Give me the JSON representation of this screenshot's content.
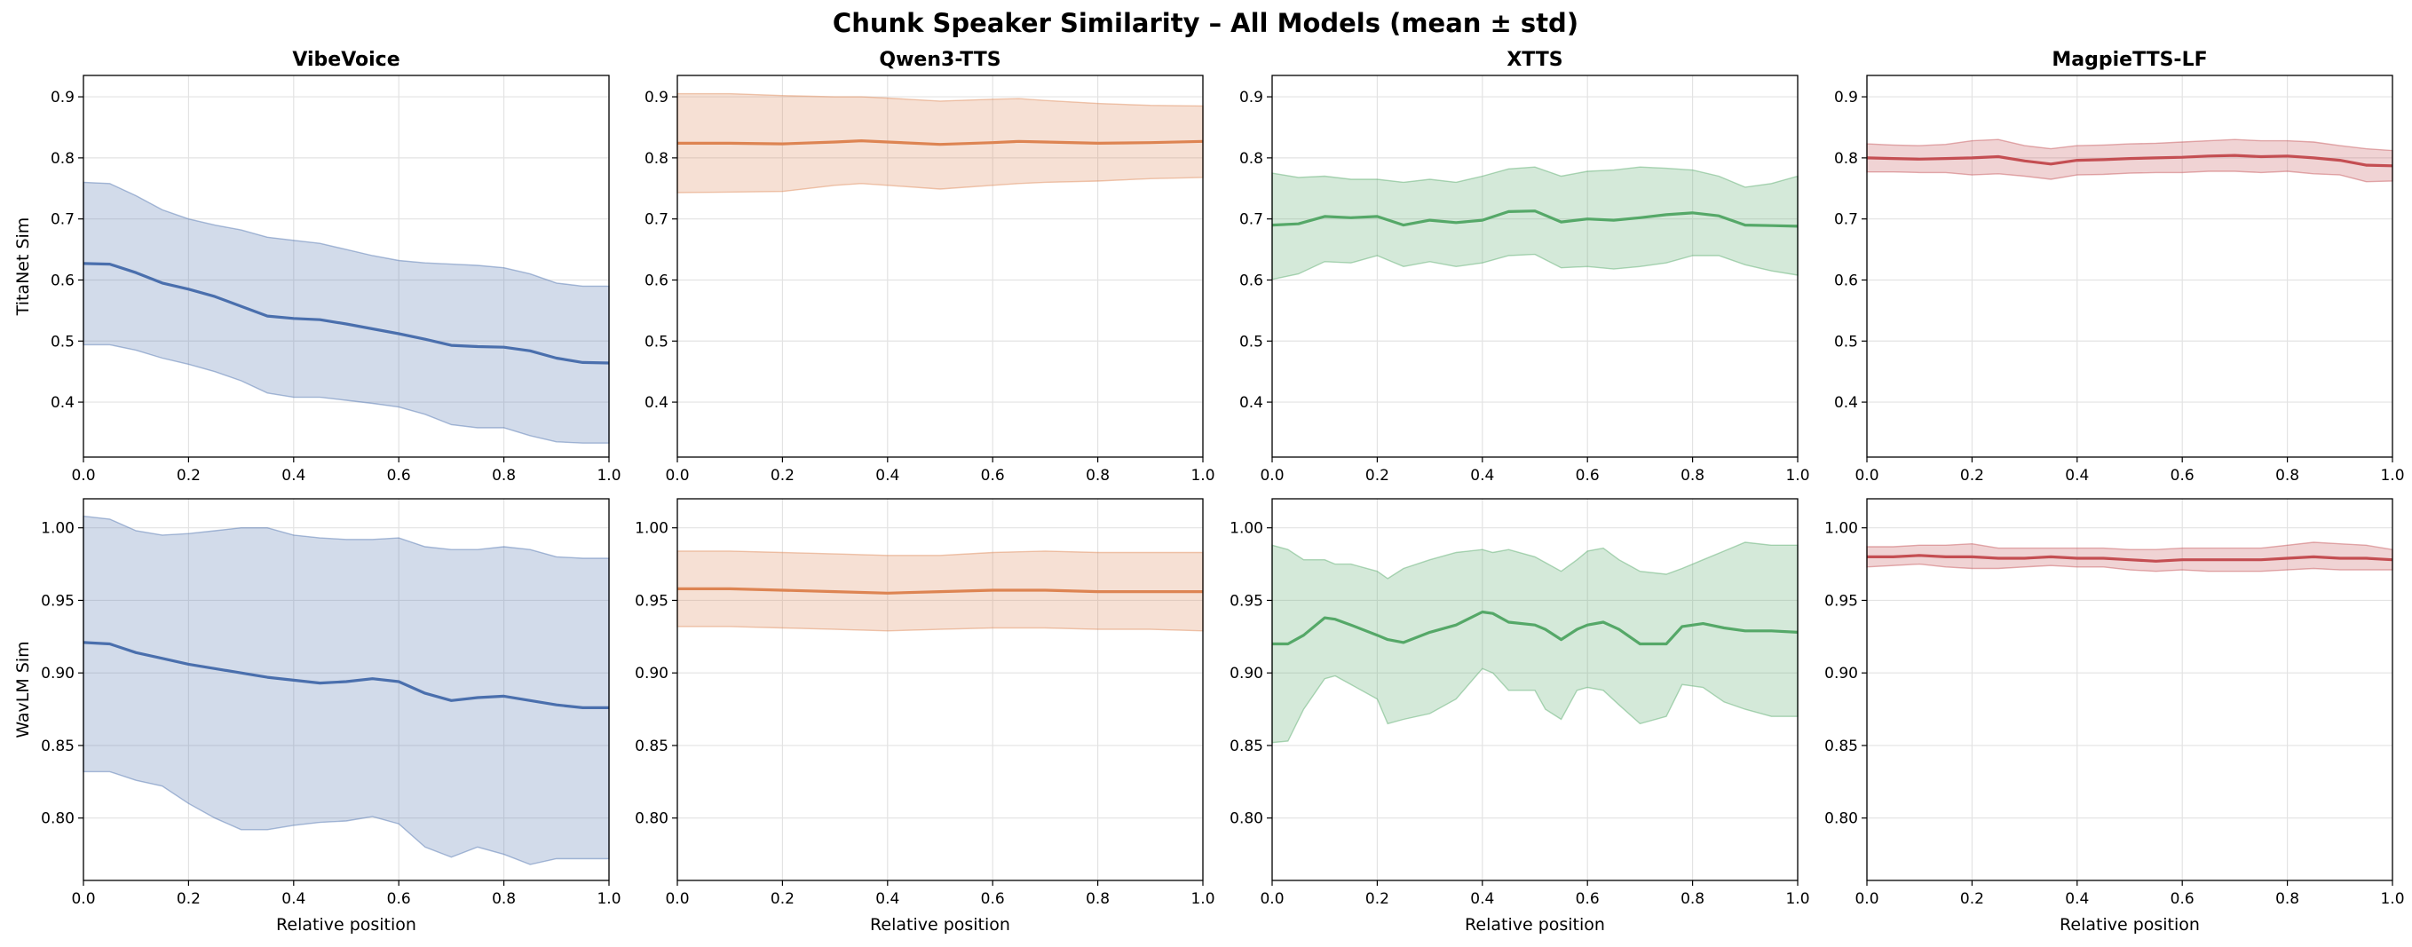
{
  "title": "Chunk Speaker Similarity – All Models (mean ± std)",
  "colors": {
    "VibeVoice": "#4a6fad",
    "Qwen3-TTS": "#dd8452",
    "XTTS": "#55a868",
    "MagpieTTS-LF": "#c44e52"
  },
  "chart_data": [
    {
      "type": "area",
      "model": "VibeVoice",
      "title": "VibeVoice",
      "row": 0,
      "col": 0,
      "xlabel": "",
      "ylabel": "TitaNet Sim",
      "xlim": [
        0,
        1
      ],
      "ylim": [
        0.31,
        0.935
      ],
      "xticks": [
        "0.0",
        "0.2",
        "0.4",
        "0.6",
        "0.8",
        "1.0"
      ],
      "yticks": [
        "0.4",
        "0.5",
        "0.6",
        "0.7",
        "0.8",
        "0.9"
      ],
      "x": [
        0.0,
        0.05,
        0.1,
        0.15,
        0.2,
        0.25,
        0.3,
        0.35,
        0.4,
        0.45,
        0.5,
        0.55,
        0.6,
        0.65,
        0.7,
        0.75,
        0.8,
        0.85,
        0.9,
        0.95,
        1.0
      ],
      "mean": [
        0.627,
        0.626,
        0.612,
        0.595,
        0.585,
        0.573,
        0.557,
        0.541,
        0.537,
        0.535,
        0.528,
        0.52,
        0.512,
        0.503,
        0.493,
        0.491,
        0.49,
        0.484,
        0.472,
        0.465,
        0.464
      ],
      "upper": [
        0.76,
        0.758,
        0.738,
        0.715,
        0.7,
        0.69,
        0.682,
        0.67,
        0.665,
        0.66,
        0.65,
        0.64,
        0.632,
        0.628,
        0.626,
        0.624,
        0.62,
        0.61,
        0.595,
        0.59,
        0.59
      ],
      "lower": [
        0.494,
        0.494,
        0.485,
        0.472,
        0.462,
        0.45,
        0.435,
        0.415,
        0.408,
        0.408,
        0.403,
        0.398,
        0.392,
        0.38,
        0.363,
        0.358,
        0.358,
        0.345,
        0.335,
        0.333,
        0.333
      ]
    },
    {
      "type": "area",
      "model": "Qwen3-TTS",
      "title": "Qwen3-TTS",
      "row": 0,
      "col": 1,
      "xlabel": "",
      "ylabel": "",
      "xlim": [
        0,
        1
      ],
      "ylim": [
        0.31,
        0.935
      ],
      "xticks": [
        "0.0",
        "0.2",
        "0.4",
        "0.6",
        "0.8",
        "1.0"
      ],
      "yticks": [
        "0.4",
        "0.5",
        "0.6",
        "0.7",
        "0.8",
        "0.9"
      ],
      "x": [
        0.0,
        0.1,
        0.2,
        0.3,
        0.35,
        0.4,
        0.5,
        0.6,
        0.65,
        0.7,
        0.8,
        0.9,
        1.0
      ],
      "mean": [
        0.824,
        0.824,
        0.823,
        0.826,
        0.828,
        0.826,
        0.822,
        0.825,
        0.827,
        0.826,
        0.824,
        0.825,
        0.827
      ],
      "upper": [
        0.905,
        0.905,
        0.902,
        0.9,
        0.9,
        0.898,
        0.893,
        0.896,
        0.897,
        0.894,
        0.889,
        0.886,
        0.885
      ],
      "lower": [
        0.743,
        0.744,
        0.745,
        0.755,
        0.758,
        0.755,
        0.749,
        0.755,
        0.758,
        0.76,
        0.762,
        0.766,
        0.768
      ]
    },
    {
      "type": "area",
      "model": "XTTS",
      "title": "XTTS",
      "row": 0,
      "col": 2,
      "xlabel": "",
      "ylabel": "",
      "xlim": [
        0,
        1
      ],
      "ylim": [
        0.31,
        0.935
      ],
      "xticks": [
        "0.0",
        "0.2",
        "0.4",
        "0.6",
        "0.8",
        "1.0"
      ],
      "yticks": [
        "0.4",
        "0.5",
        "0.6",
        "0.7",
        "0.8",
        "0.9"
      ],
      "x": [
        0.0,
        0.05,
        0.1,
        0.15,
        0.2,
        0.25,
        0.3,
        0.35,
        0.4,
        0.45,
        0.5,
        0.55,
        0.6,
        0.65,
        0.7,
        0.75,
        0.8,
        0.85,
        0.9,
        0.95,
        1.0
      ],
      "mean": [
        0.69,
        0.692,
        0.704,
        0.702,
        0.704,
        0.69,
        0.698,
        0.694,
        0.698,
        0.712,
        0.713,
        0.695,
        0.7,
        0.698,
        0.702,
        0.707,
        0.71,
        0.705,
        0.69,
        0.689,
        0.688
      ],
      "upper": [
        0.775,
        0.768,
        0.77,
        0.765,
        0.765,
        0.76,
        0.765,
        0.76,
        0.77,
        0.782,
        0.785,
        0.77,
        0.778,
        0.78,
        0.785,
        0.783,
        0.78,
        0.77,
        0.752,
        0.758,
        0.77
      ],
      "lower": [
        0.601,
        0.61,
        0.63,
        0.628,
        0.64,
        0.622,
        0.63,
        0.622,
        0.628,
        0.64,
        0.642,
        0.62,
        0.622,
        0.618,
        0.622,
        0.628,
        0.64,
        0.64,
        0.625,
        0.615,
        0.608
      ]
    },
    {
      "type": "area",
      "model": "MagpieTTS-LF",
      "title": "MagpieTTS-LF",
      "row": 0,
      "col": 3,
      "xlabel": "",
      "ylabel": "",
      "xlim": [
        0,
        1
      ],
      "ylim": [
        0.31,
        0.935
      ],
      "xticks": [
        "0.0",
        "0.2",
        "0.4",
        "0.6",
        "0.8",
        "1.0"
      ],
      "yticks": [
        "0.4",
        "0.5",
        "0.6",
        "0.7",
        "0.8",
        "0.9"
      ],
      "x": [
        0.0,
        0.05,
        0.1,
        0.15,
        0.2,
        0.25,
        0.3,
        0.35,
        0.4,
        0.45,
        0.5,
        0.55,
        0.6,
        0.65,
        0.7,
        0.75,
        0.8,
        0.85,
        0.9,
        0.95,
        1.0
      ],
      "mean": [
        0.8,
        0.799,
        0.798,
        0.799,
        0.8,
        0.802,
        0.795,
        0.79,
        0.796,
        0.797,
        0.799,
        0.8,
        0.801,
        0.803,
        0.804,
        0.802,
        0.803,
        0.8,
        0.796,
        0.788,
        0.787
      ],
      "upper": [
        0.823,
        0.821,
        0.82,
        0.822,
        0.828,
        0.83,
        0.82,
        0.815,
        0.82,
        0.821,
        0.823,
        0.824,
        0.826,
        0.828,
        0.83,
        0.828,
        0.828,
        0.826,
        0.82,
        0.815,
        0.812
      ],
      "lower": [
        0.777,
        0.777,
        0.776,
        0.776,
        0.772,
        0.774,
        0.77,
        0.765,
        0.772,
        0.773,
        0.775,
        0.776,
        0.776,
        0.778,
        0.778,
        0.776,
        0.778,
        0.774,
        0.772,
        0.761,
        0.762
      ]
    },
    {
      "type": "area",
      "model": "VibeVoice",
      "title": "",
      "row": 1,
      "col": 0,
      "xlabel": "Relative position",
      "ylabel": "WavLM Sim",
      "xlim": [
        0,
        1
      ],
      "ylim": [
        0.757,
        1.02
      ],
      "xticks": [
        "0.0",
        "0.2",
        "0.4",
        "0.6",
        "0.8",
        "1.0"
      ],
      "yticks": [
        "0.80",
        "0.85",
        "0.90",
        "0.95",
        "1.00"
      ],
      "x": [
        0.0,
        0.05,
        0.1,
        0.15,
        0.2,
        0.25,
        0.3,
        0.35,
        0.4,
        0.45,
        0.5,
        0.55,
        0.6,
        0.65,
        0.7,
        0.75,
        0.8,
        0.85,
        0.9,
        0.95,
        1.0
      ],
      "mean": [
        0.921,
        0.92,
        0.914,
        0.91,
        0.906,
        0.903,
        0.9,
        0.897,
        0.895,
        0.893,
        0.894,
        0.896,
        0.894,
        0.886,
        0.881,
        0.883,
        0.884,
        0.881,
        0.878,
        0.876,
        0.876
      ],
      "upper": [
        1.008,
        1.006,
        0.998,
        0.995,
        0.996,
        0.998,
        1.0,
        1.0,
        0.995,
        0.993,
        0.992,
        0.992,
        0.993,
        0.987,
        0.985,
        0.985,
        0.987,
        0.985,
        0.98,
        0.979,
        0.979
      ],
      "lower": [
        0.832,
        0.832,
        0.826,
        0.822,
        0.81,
        0.8,
        0.792,
        0.792,
        0.795,
        0.797,
        0.798,
        0.801,
        0.796,
        0.78,
        0.773,
        0.78,
        0.775,
        0.768,
        0.772,
        0.772,
        0.772
      ]
    },
    {
      "type": "area",
      "model": "Qwen3-TTS",
      "title": "",
      "row": 1,
      "col": 1,
      "xlabel": "Relative position",
      "ylabel": "",
      "xlim": [
        0,
        1
      ],
      "ylim": [
        0.757,
        1.02
      ],
      "xticks": [
        "0.0",
        "0.2",
        "0.4",
        "0.6",
        "0.8",
        "1.0"
      ],
      "yticks": [
        "0.80",
        "0.85",
        "0.90",
        "0.95",
        "1.00"
      ],
      "x": [
        0.0,
        0.1,
        0.2,
        0.3,
        0.4,
        0.5,
        0.6,
        0.7,
        0.8,
        0.9,
        1.0
      ],
      "mean": [
        0.958,
        0.958,
        0.957,
        0.956,
        0.955,
        0.956,
        0.957,
        0.957,
        0.956,
        0.956,
        0.956
      ],
      "upper": [
        0.984,
        0.984,
        0.983,
        0.982,
        0.981,
        0.981,
        0.983,
        0.984,
        0.983,
        0.983,
        0.983
      ],
      "lower": [
        0.932,
        0.932,
        0.931,
        0.93,
        0.929,
        0.93,
        0.931,
        0.931,
        0.93,
        0.93,
        0.929
      ]
    },
    {
      "type": "area",
      "model": "XTTS",
      "title": "",
      "row": 1,
      "col": 2,
      "xlabel": "Relative position",
      "ylabel": "",
      "xlim": [
        0,
        1
      ],
      "ylim": [
        0.757,
        1.02
      ],
      "xticks": [
        "0.0",
        "0.2",
        "0.4",
        "0.6",
        "0.8",
        "1.0"
      ],
      "yticks": [
        "0.80",
        "0.85",
        "0.90",
        "0.95",
        "1.00"
      ],
      "x": [
        0.0,
        0.03,
        0.06,
        0.1,
        0.12,
        0.15,
        0.2,
        0.22,
        0.25,
        0.3,
        0.35,
        0.4,
        0.42,
        0.45,
        0.5,
        0.52,
        0.55,
        0.58,
        0.6,
        0.63,
        0.66,
        0.7,
        0.75,
        0.78,
        0.82,
        0.86,
        0.9,
        0.95,
        1.0
      ],
      "mean": [
        0.92,
        0.92,
        0.926,
        0.938,
        0.937,
        0.933,
        0.926,
        0.923,
        0.921,
        0.928,
        0.933,
        0.942,
        0.941,
        0.935,
        0.933,
        0.93,
        0.923,
        0.93,
        0.933,
        0.935,
        0.93,
        0.92,
        0.92,
        0.932,
        0.934,
        0.931,
        0.929,
        0.929,
        0.928
      ],
      "upper": [
        0.988,
        0.985,
        0.978,
        0.978,
        0.975,
        0.975,
        0.97,
        0.965,
        0.972,
        0.978,
        0.983,
        0.985,
        0.983,
        0.985,
        0.98,
        0.976,
        0.97,
        0.978,
        0.984,
        0.986,
        0.978,
        0.97,
        0.968,
        0.972,
        0.978,
        0.984,
        0.99,
        0.988,
        0.988
      ],
      "lower": [
        0.852,
        0.853,
        0.875,
        0.896,
        0.898,
        0.892,
        0.882,
        0.865,
        0.868,
        0.872,
        0.882,
        0.903,
        0.9,
        0.888,
        0.888,
        0.875,
        0.868,
        0.888,
        0.89,
        0.888,
        0.878,
        0.865,
        0.87,
        0.892,
        0.89,
        0.88,
        0.875,
        0.87,
        0.87
      ]
    },
    {
      "type": "area",
      "model": "MagpieTTS-LF",
      "title": "",
      "row": 1,
      "col": 3,
      "xlabel": "Relative position",
      "ylabel": "",
      "xlim": [
        0,
        1
      ],
      "ylim": [
        0.757,
        1.02
      ],
      "xticks": [
        "0.0",
        "0.2",
        "0.4",
        "0.6",
        "0.8",
        "1.0"
      ],
      "yticks": [
        "0.80",
        "0.85",
        "0.90",
        "0.95",
        "1.00"
      ],
      "x": [
        0.0,
        0.05,
        0.1,
        0.15,
        0.2,
        0.25,
        0.3,
        0.35,
        0.4,
        0.45,
        0.5,
        0.55,
        0.6,
        0.65,
        0.7,
        0.75,
        0.8,
        0.85,
        0.9,
        0.95,
        1.0
      ],
      "mean": [
        0.98,
        0.98,
        0.981,
        0.98,
        0.98,
        0.979,
        0.979,
        0.98,
        0.979,
        0.979,
        0.978,
        0.977,
        0.978,
        0.978,
        0.978,
        0.978,
        0.979,
        0.98,
        0.979,
        0.979,
        0.978
      ],
      "upper": [
        0.987,
        0.987,
        0.988,
        0.988,
        0.989,
        0.986,
        0.986,
        0.986,
        0.986,
        0.986,
        0.985,
        0.985,
        0.986,
        0.986,
        0.986,
        0.986,
        0.988,
        0.99,
        0.989,
        0.988,
        0.985
      ],
      "lower": [
        0.973,
        0.974,
        0.975,
        0.973,
        0.972,
        0.972,
        0.973,
        0.974,
        0.973,
        0.973,
        0.971,
        0.97,
        0.971,
        0.97,
        0.97,
        0.97,
        0.971,
        0.972,
        0.971,
        0.971,
        0.971
      ]
    }
  ]
}
